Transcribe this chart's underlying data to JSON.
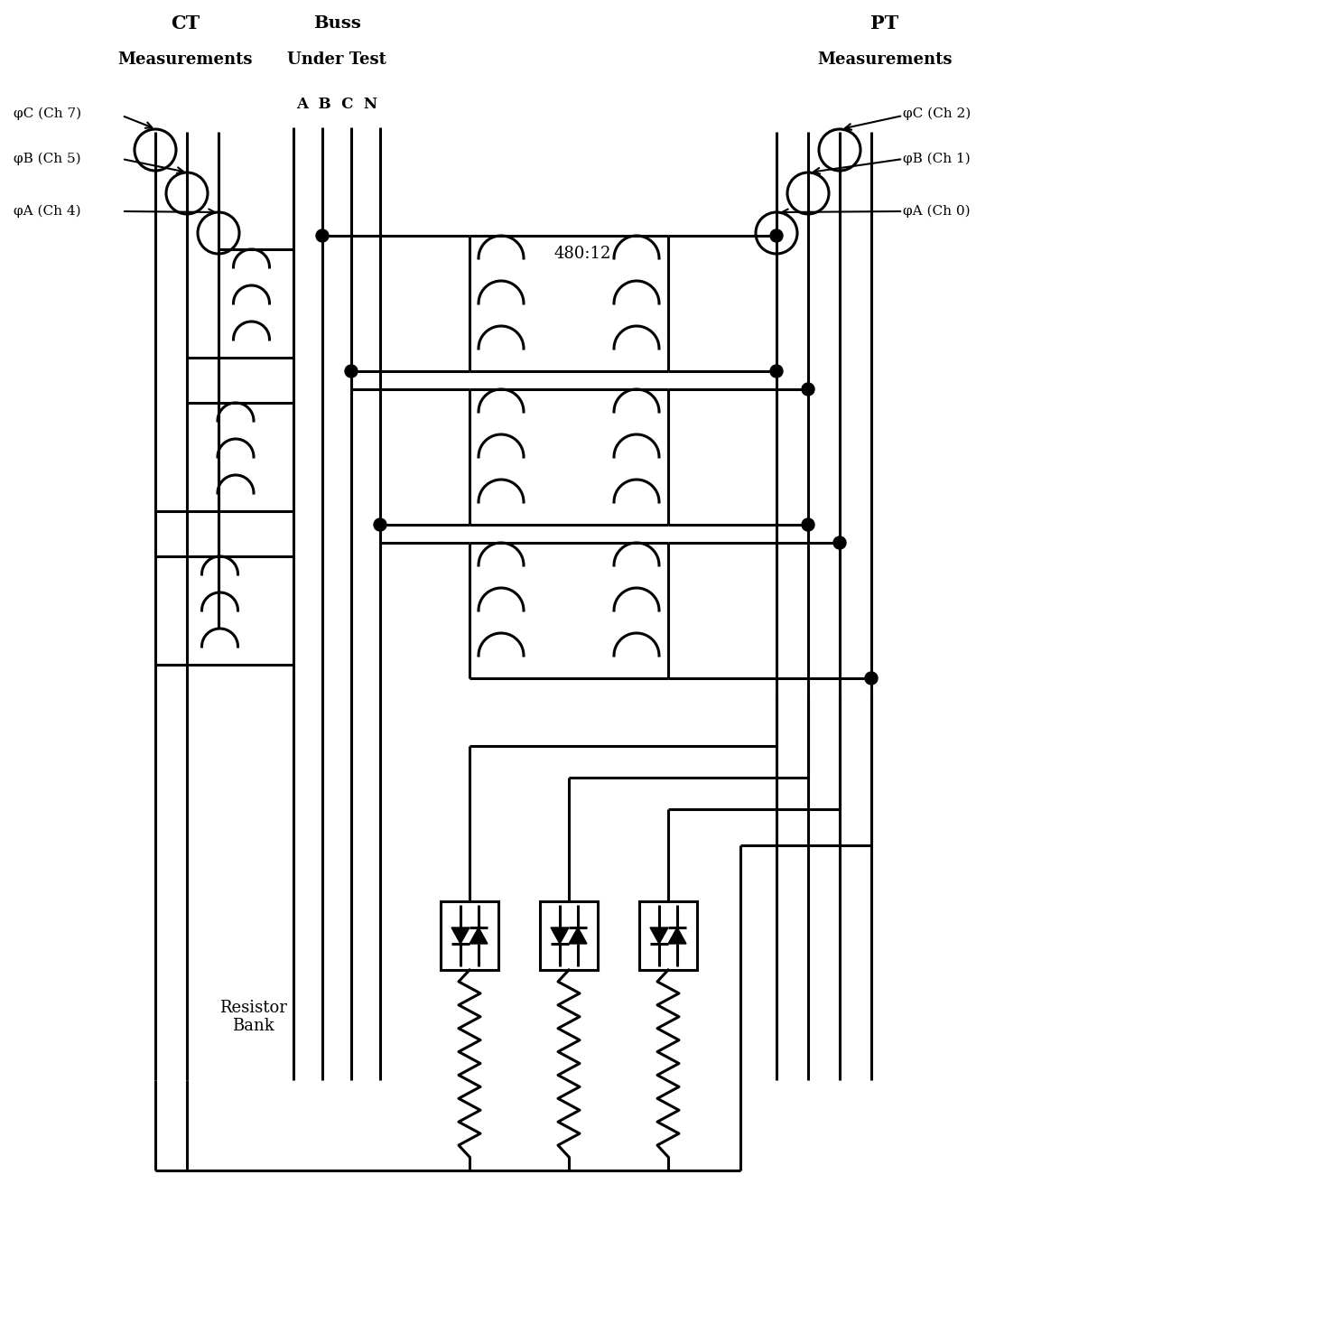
{
  "fig_width": 14.83,
  "fig_height": 14.76,
  "ct_label": "CT",
  "ct_sub_label": "Measurements",
  "pt_label": "PT",
  "pt_sub_label": "Measurements",
  "buss_label": "Buss",
  "buss_sub_label": "Under Test",
  "buss_phases": "A  B  C  N",
  "ratio_label": "480:12",
  "resistor_label": "Resistor\nBank",
  "ct_channels": [
    "φC (Ch 7)",
    "φB (Ch 5)",
    "φA (Ch 4)"
  ],
  "pt_channels": [
    "φC (Ch 2)",
    "φB (Ch 1)",
    "φA (Ch 0)"
  ],
  "lw": 2.2,
  "lw_thick": 2.8
}
